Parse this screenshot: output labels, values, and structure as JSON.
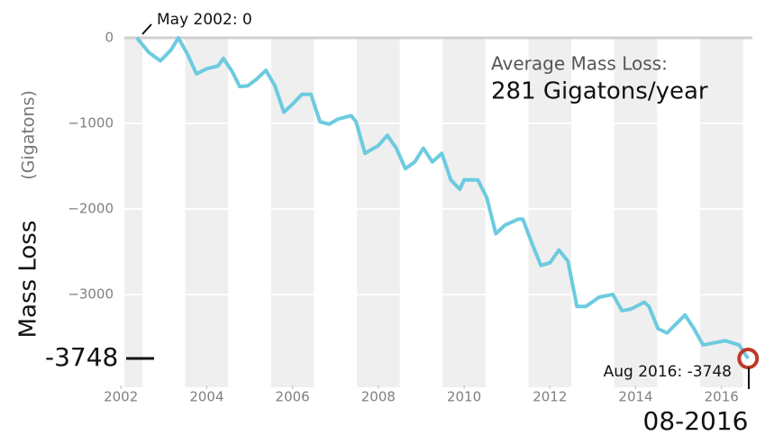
{
  "chart_data": {
    "type": "line",
    "ylabel": "Mass Loss",
    "ylabel_unit": "(Gigatons)",
    "annotations": [
      "May 2002: 0",
      "Average Mass Loss:",
      "281 Gigatons/year",
      "-3748",
      "Aug 2016: -3748",
      "08-2016"
    ],
    "x": [
      2002.37,
      2002.65,
      2002.92,
      2003.17,
      2003.34,
      2003.55,
      2003.76,
      2004.01,
      2004.26,
      2004.39,
      2004.6,
      2004.77,
      2004.96,
      2005.17,
      2005.38,
      2005.59,
      2005.8,
      2006.01,
      2006.22,
      2006.43,
      2006.64,
      2006.85,
      2007.06,
      2007.37,
      2007.48,
      2007.69,
      2008.0,
      2008.21,
      2008.42,
      2008.63,
      2008.85,
      2009.05,
      2009.26,
      2009.48,
      2009.69,
      2009.9,
      2010.0,
      2010.32,
      2010.53,
      2010.74,
      2010.95,
      2011.26,
      2011.37,
      2011.58,
      2011.79,
      2012.0,
      2012.21,
      2012.42,
      2012.63,
      2012.84,
      2013.15,
      2013.36,
      2013.47,
      2013.68,
      2013.89,
      2014.2,
      2014.31,
      2014.52,
      2014.73,
      2015.15,
      2015.36,
      2015.57,
      2015.88,
      2016.09,
      2016.41,
      2016.62
    ],
    "series": [
      {
        "name": "Mass Loss",
        "color": "#6ccbe0",
        "values": [
          0,
          -170,
          -270,
          -140,
          0,
          -190,
          -420,
          -360,
          -330,
          -240,
          -400,
          -570,
          -560,
          -480,
          -380,
          -560,
          -870,
          -770,
          -660,
          -660,
          -980,
          -1010,
          -950,
          -910,
          -980,
          -1350,
          -1260,
          -1140,
          -1290,
          -1530,
          -1450,
          -1290,
          -1450,
          -1350,
          -1660,
          -1770,
          -1660,
          -1660,
          -1870,
          -2290,
          -2190,
          -2120,
          -2120,
          -2400,
          -2660,
          -2630,
          -2480,
          -2610,
          -3140,
          -3140,
          -3030,
          -3010,
          -3000,
          -3190,
          -3170,
          -3090,
          -3140,
          -3400,
          -3450,
          -3240,
          -3400,
          -3590,
          -3560,
          -3540,
          -3590,
          -3748
        ]
      }
    ],
    "marker_color": "#c0392b",
    "xlim": [
      2002.08,
      2016.72
    ],
    "xticks": [
      2002,
      2004,
      2006,
      2008,
      2010,
      2012,
      2014,
      2016
    ],
    "ylim": [
      -4000,
      0
    ],
    "yticks": [
      0,
      {
        "value": -1000,
        "label": "−1000"
      },
      {
        "value": -2000,
        "label": "−2000"
      },
      {
        "value": -3000,
        "label": "−3000"
      }
    ],
    "grid": true
  }
}
